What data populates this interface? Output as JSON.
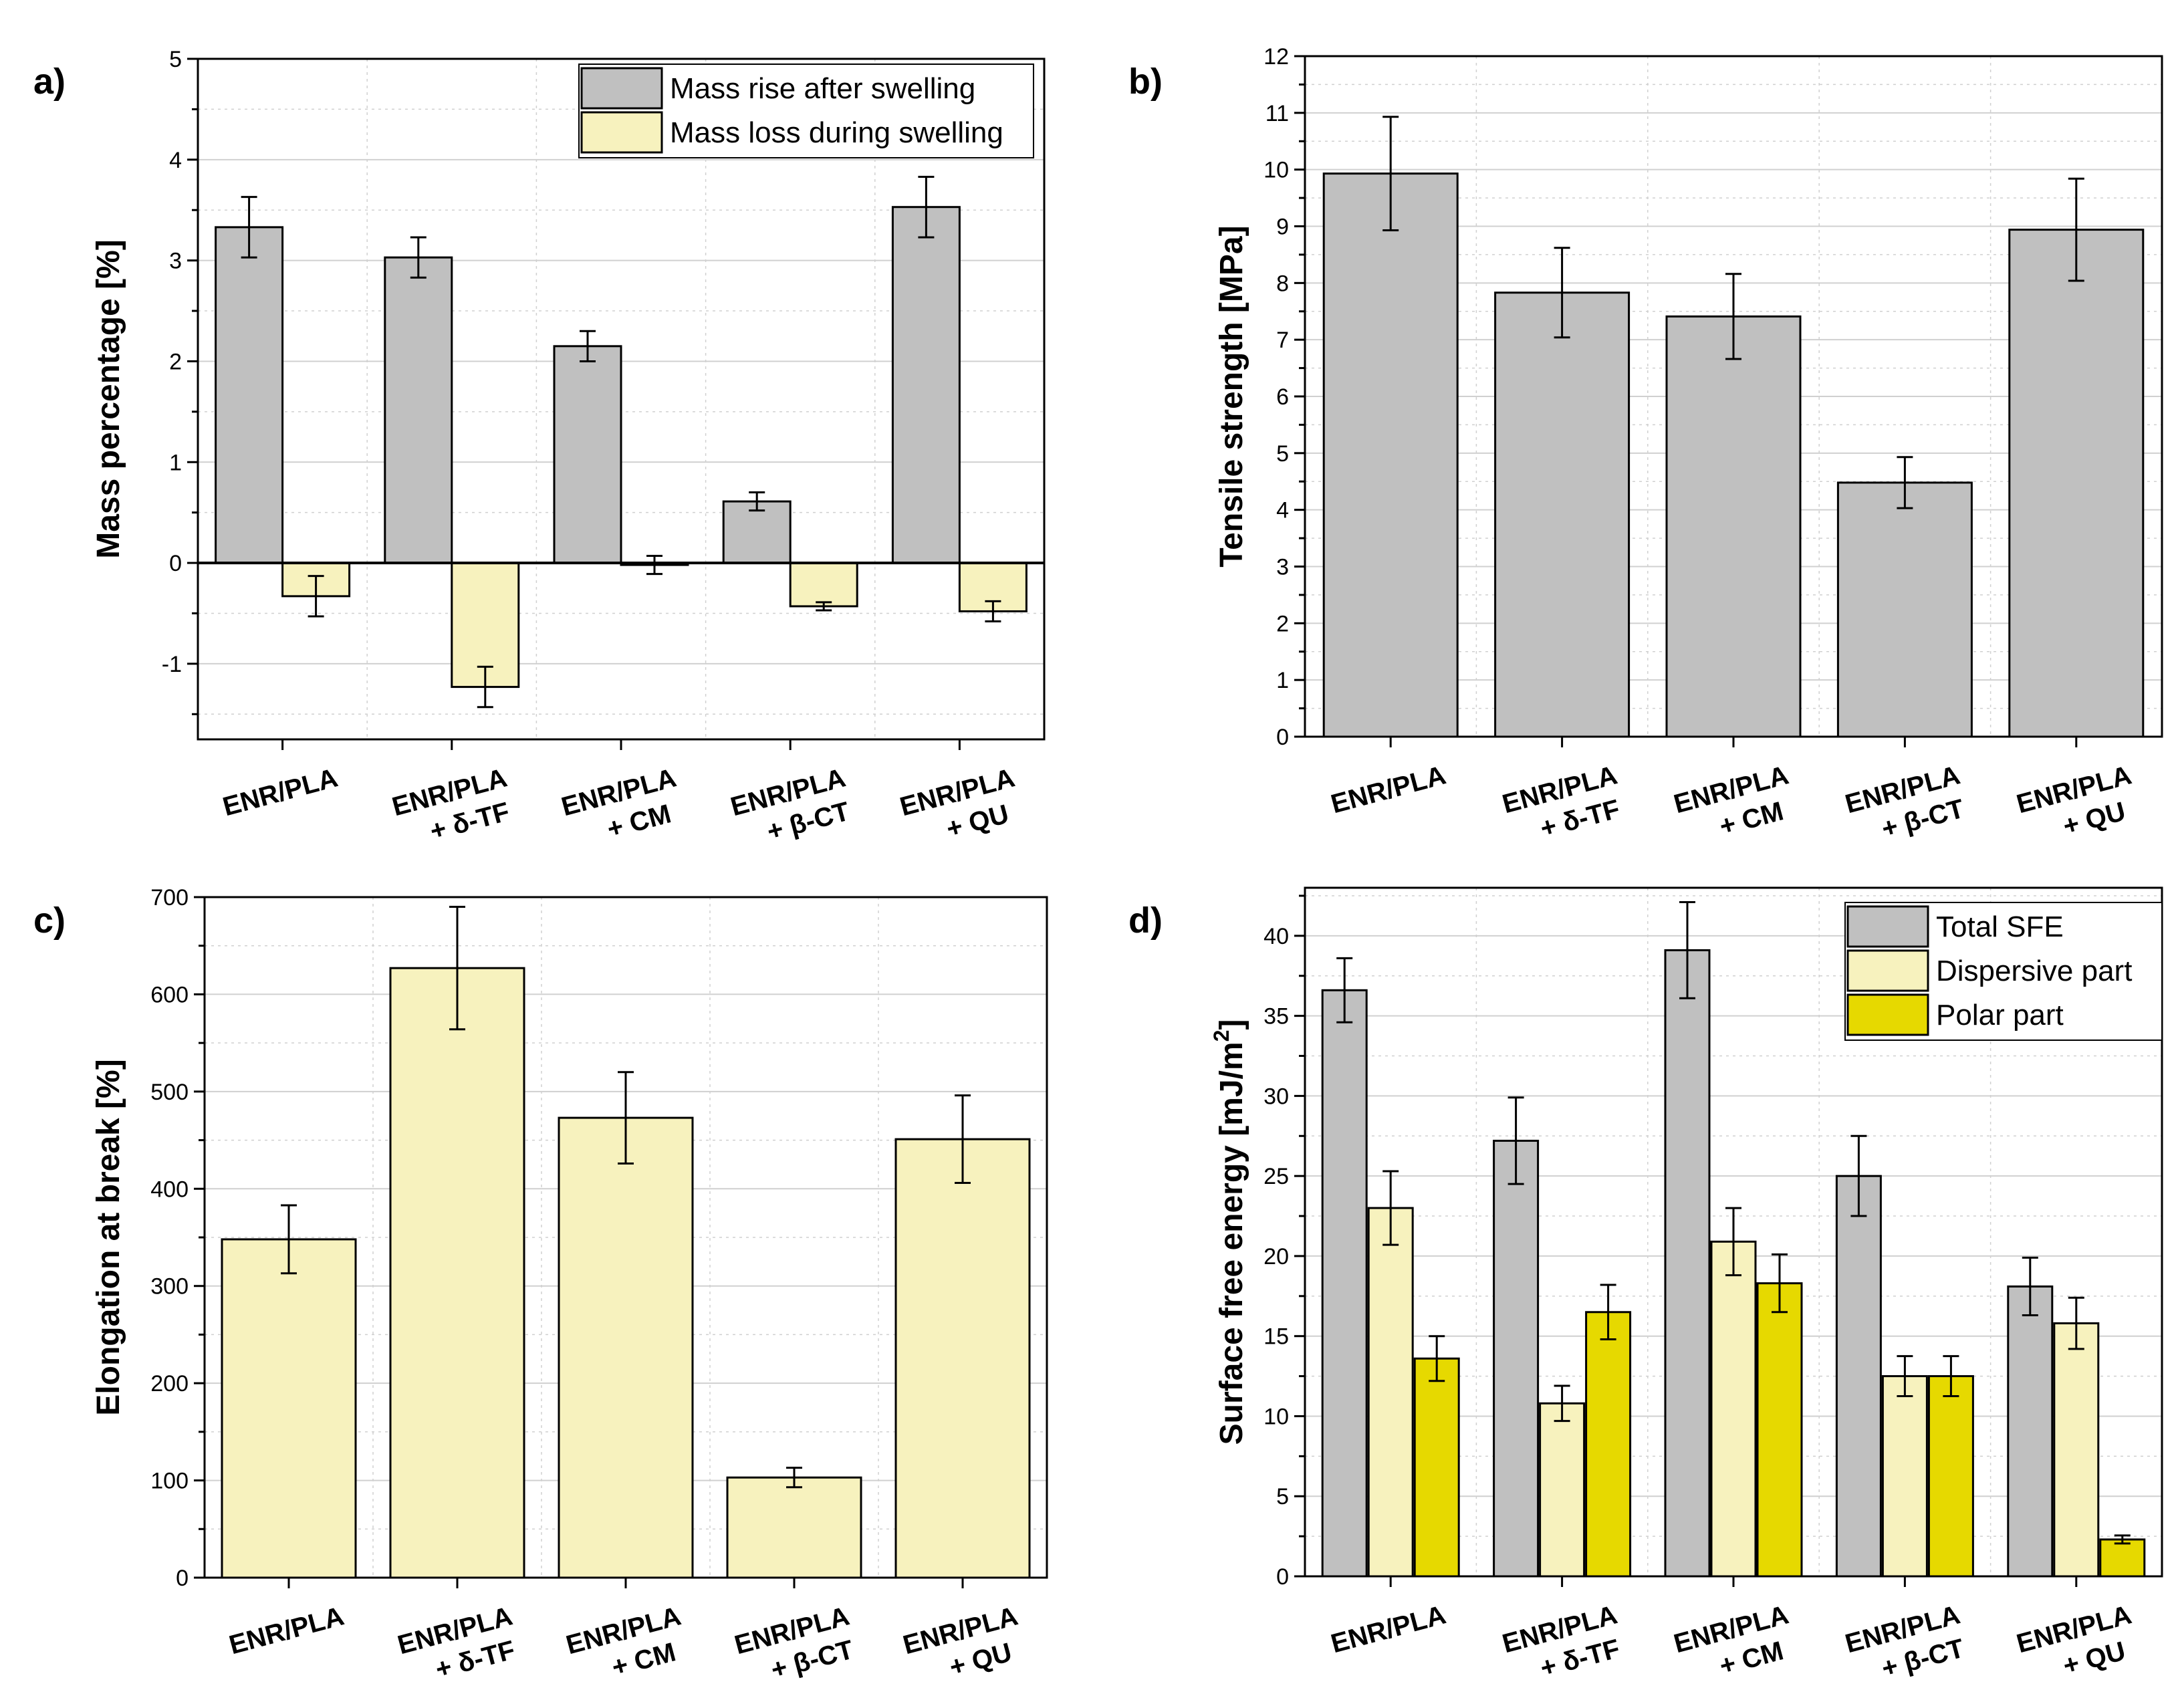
{
  "colors": {
    "gray": "#c0c0c0",
    "cream": "#f7f2be",
    "yellow": "#e6d900",
    "grid": "#d0d0d0",
    "axis": "#000000"
  },
  "chart_data": [
    {
      "panel": "a)",
      "type": "bar",
      "title": "",
      "xlabel": "",
      "ylabel": "Mass percentage [%]",
      "ylim": [
        -1.75,
        5
      ],
      "yticks": [
        -1,
        0,
        1,
        2,
        3,
        4,
        5
      ],
      "grid": true,
      "legend_position": "top-right",
      "categories": [
        [
          "ENR/PLA"
        ],
        [
          "ENR/PLA",
          "+ δ-TF"
        ],
        [
          "ENR/PLA",
          "+ CM"
        ],
        [
          "ENR/PLA",
          "+ β-CT"
        ],
        [
          "ENR/PLA",
          "+ QU"
        ]
      ],
      "series": [
        {
          "name": "Mass rise after swelling",
          "color": "gray",
          "values": [
            3.33,
            3.03,
            2.15,
            0.61,
            3.53
          ],
          "errors": [
            0.3,
            0.2,
            0.15,
            0.09,
            0.3
          ]
        },
        {
          "name": "Mass loss during swelling",
          "color": "cream",
          "values": [
            -0.33,
            -1.23,
            -0.02,
            -0.43,
            -0.48
          ],
          "errors": [
            0.2,
            0.2,
            0.09,
            0.04,
            0.1
          ]
        }
      ]
    },
    {
      "panel": "b)",
      "type": "bar",
      "title": "",
      "xlabel": "",
      "ylabel": "Tensile strength [MPa]",
      "ylim": [
        0,
        12
      ],
      "yticks": [
        0,
        1,
        2,
        3,
        4,
        5,
        6,
        7,
        8,
        9,
        10,
        11,
        12
      ],
      "grid": true,
      "categories": [
        [
          "ENR/PLA"
        ],
        [
          "ENR/PLA",
          "+ δ-TF"
        ],
        [
          "ENR/PLA",
          "+ CM"
        ],
        [
          "ENR/PLA",
          "+ β-CT"
        ],
        [
          "ENR/PLA",
          "+ QU"
        ]
      ],
      "series": [
        {
          "name": "Tensile strength",
          "color": "gray",
          "values": [
            9.93,
            7.83,
            7.41,
            4.48,
            8.94
          ],
          "errors": [
            1.0,
            0.79,
            0.75,
            0.45,
            0.9
          ]
        }
      ]
    },
    {
      "panel": "c)",
      "type": "bar",
      "title": "",
      "xlabel": "",
      "ylabel": "Elongation at break [%]",
      "ylim": [
        0,
        700
      ],
      "yticks": [
        0,
        100,
        200,
        300,
        400,
        500,
        600,
        700
      ],
      "grid": true,
      "categories": [
        [
          "ENR/PLA"
        ],
        [
          "ENR/PLA",
          "+ δ-TF"
        ],
        [
          "ENR/PLA",
          "+ CM"
        ],
        [
          "ENR/PLA",
          "+ β-CT"
        ],
        [
          "ENR/PLA",
          "+ QU"
        ]
      ],
      "series": [
        {
          "name": "Elongation at break",
          "color": "cream",
          "values": [
            348,
            627,
            473,
            103,
            451
          ],
          "errors": [
            35,
            63,
            47,
            10,
            45
          ]
        }
      ]
    },
    {
      "panel": "d)",
      "type": "bar",
      "title": "",
      "xlabel": "",
      "ylabel": "Surface free energy [mJ/m",
      "ylabel_superscript": "2",
      "ylabel_suffix": "]",
      "ylim": [
        0,
        43
      ],
      "yticks": [
        0,
        5,
        10,
        15,
        20,
        25,
        30,
        35,
        40
      ],
      "grid": true,
      "legend_position": "top-right",
      "categories": [
        [
          "ENR/PLA"
        ],
        [
          "ENR/PLA",
          "+ δ-TF"
        ],
        [
          "ENR/PLA",
          "+ CM"
        ],
        [
          "ENR/PLA",
          "+ β-CT"
        ],
        [
          "ENR/PLA",
          "+ QU"
        ]
      ],
      "series": [
        {
          "name": "Total SFE",
          "color": "gray",
          "values": [
            36.6,
            27.2,
            39.1,
            25.0,
            18.1
          ],
          "errors": [
            2.0,
            2.7,
            3.0,
            2.5,
            1.8
          ]
        },
        {
          "name": "Dispersive part",
          "color": "cream",
          "values": [
            23.0,
            10.8,
            20.9,
            12.5,
            15.8
          ],
          "errors": [
            2.3,
            1.1,
            2.1,
            1.25,
            1.6
          ]
        },
        {
          "name": "Polar part",
          "color": "yellow",
          "values": [
            13.6,
            16.5,
            18.3,
            12.5,
            2.3
          ],
          "errors": [
            1.4,
            1.7,
            1.8,
            1.25,
            0.25
          ]
        }
      ]
    }
  ]
}
